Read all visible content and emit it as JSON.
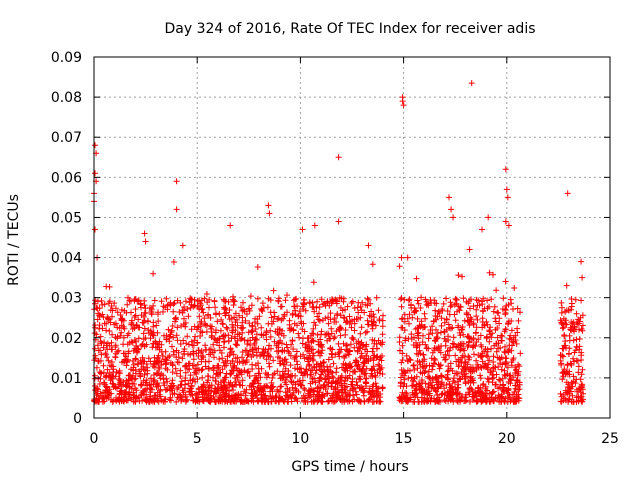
{
  "chart_data": {
    "type": "scatter",
    "title": "Day 324 of 2016, Rate Of TEC Index for receiver adis",
    "xlabel": "GPS time / hours",
    "ylabel": "ROTI / TECUs",
    "xlim": [
      0,
      25
    ],
    "ylim": [
      0,
      0.09
    ],
    "xticks": [
      "0",
      "5",
      "10",
      "15",
      "20",
      "25"
    ],
    "yticks": [
      "0",
      "0.01",
      "0.02",
      "0.03",
      "0.04",
      "0.05",
      "0.06",
      "0.07",
      "0.08",
      "0.09"
    ],
    "grid": true,
    "marker": "+",
    "series": [
      {
        "color": "#ff0000",
        "data_segments": [
          {
            "x_range": [
              0.0,
              14.0
            ],
            "typical_y_range": [
              0.004,
              0.03
            ]
          },
          {
            "x_range": [
              14.8,
              20.7
            ],
            "typical_y_range": [
              0.004,
              0.03
            ]
          },
          {
            "x_range": [
              22.6,
              23.7
            ],
            "typical_y_range": [
              0.004,
              0.03
            ]
          }
        ],
        "outliers": [
          {
            "x": 0.05,
            "y": 0.068
          },
          {
            "x": 0.1,
            "y": 0.066
          },
          {
            "x": 0.05,
            "y": 0.061
          },
          {
            "x": 0.1,
            "y": 0.059
          },
          {
            "x": 0.0,
            "y": 0.056
          },
          {
            "x": 0.0,
            "y": 0.054
          },
          {
            "x": 0.05,
            "y": 0.047
          },
          {
            "x": 0.15,
            "y": 0.04
          },
          {
            "x": 2.45,
            "y": 0.046
          },
          {
            "x": 2.5,
            "y": 0.044
          },
          {
            "x": 4.0,
            "y": 0.059
          },
          {
            "x": 4.0,
            "y": 0.052
          },
          {
            "x": 4.3,
            "y": 0.043
          },
          {
            "x": 6.6,
            "y": 0.048
          },
          {
            "x": 8.45,
            "y": 0.053
          },
          {
            "x": 8.5,
            "y": 0.051
          },
          {
            "x": 10.1,
            "y": 0.047
          },
          {
            "x": 10.7,
            "y": 0.048
          },
          {
            "x": 11.85,
            "y": 0.065
          },
          {
            "x": 11.85,
            "y": 0.049
          },
          {
            "x": 13.3,
            "y": 0.043
          },
          {
            "x": 14.95,
            "y": 0.08
          },
          {
            "x": 14.95,
            "y": 0.079
          },
          {
            "x": 15.0,
            "y": 0.078
          },
          {
            "x": 14.9,
            "y": 0.04
          },
          {
            "x": 15.2,
            "y": 0.04
          },
          {
            "x": 17.2,
            "y": 0.055
          },
          {
            "x": 17.3,
            "y": 0.052
          },
          {
            "x": 17.4,
            "y": 0.05
          },
          {
            "x": 18.3,
            "y": 0.0835
          },
          {
            "x": 18.2,
            "y": 0.042
          },
          {
            "x": 18.8,
            "y": 0.047
          },
          {
            "x": 19.1,
            "y": 0.05
          },
          {
            "x": 19.95,
            "y": 0.062
          },
          {
            "x": 20.0,
            "y": 0.057
          },
          {
            "x": 20.05,
            "y": 0.055
          },
          {
            "x": 19.95,
            "y": 0.049
          },
          {
            "x": 20.1,
            "y": 0.048
          },
          {
            "x": 22.95,
            "y": 0.056
          },
          {
            "x": 22.9,
            "y": 0.033
          },
          {
            "x": 23.6,
            "y": 0.039
          },
          {
            "x": 23.65,
            "y": 0.035
          }
        ]
      }
    ]
  }
}
